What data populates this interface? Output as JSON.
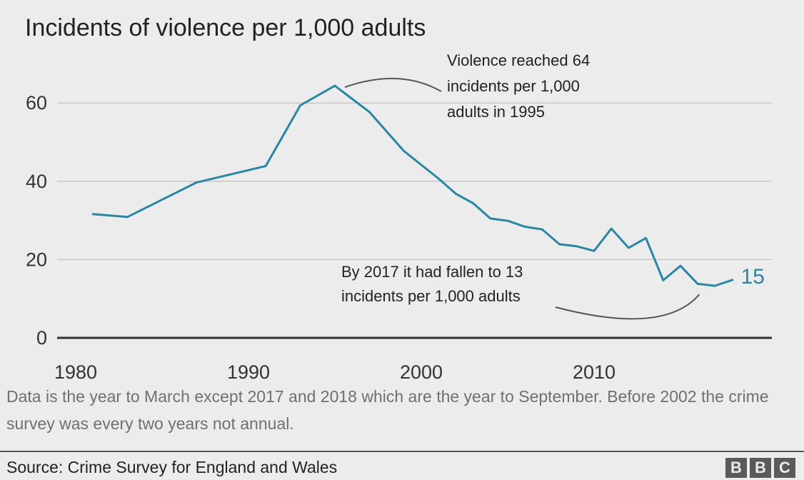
{
  "chart_data": {
    "type": "line",
    "title": "Incidents of violence per 1,000 adults",
    "xlabel": "",
    "ylabel": "",
    "xlim": [
      1979,
      2020
    ],
    "ylim": [
      0,
      70
    ],
    "x_ticks": [
      1980,
      1990,
      2000,
      2010
    ],
    "y_ticks": [
      0,
      20,
      40,
      60
    ],
    "grid": true,
    "series": [
      {
        "name": "Incidents of violence per 1,000 adults",
        "color": "#2a86a3",
        "x": [
          1981,
          1983,
          1987,
          1991,
          1993,
          1995,
          1997,
          1999,
          2001,
          2002,
          2003,
          2004,
          2005,
          2006,
          2007,
          2008,
          2009,
          2010,
          2011,
          2012,
          2013,
          2014,
          2015,
          2016,
          2017,
          2018
        ],
        "y": [
          31.6,
          30.9,
          39.7,
          43.9,
          59.4,
          64.4,
          57.7,
          47.7,
          40.7,
          36.8,
          34.4,
          30.5,
          29.9,
          28.4,
          27.7,
          23.9,
          23.4,
          22.2,
          27.9,
          23.0,
          25.5,
          14.7,
          18.4,
          13.8,
          13.3,
          14.8
        ]
      }
    ],
    "end_label": "15",
    "annotations": [
      {
        "text_lines": [
          "Violence reached 64",
          "incidents per 1,000",
          "adults in 1995"
        ],
        "points_to": {
          "x": 1995,
          "y": 64.4
        }
      },
      {
        "text_lines": [
          "By 2017 it had fallen to 13",
          "incidents per 1,000 adults"
        ],
        "points_to": {
          "x": 2017,
          "y": 13.3
        }
      }
    ]
  },
  "footnote": "Data is the year to March except 2017 and 2018 which are the year to September. Before 2002 the crime survey was every two years not annual.",
  "source": "Source: Crime Survey for England and Wales",
  "logo": [
    "B",
    "B",
    "C"
  ]
}
